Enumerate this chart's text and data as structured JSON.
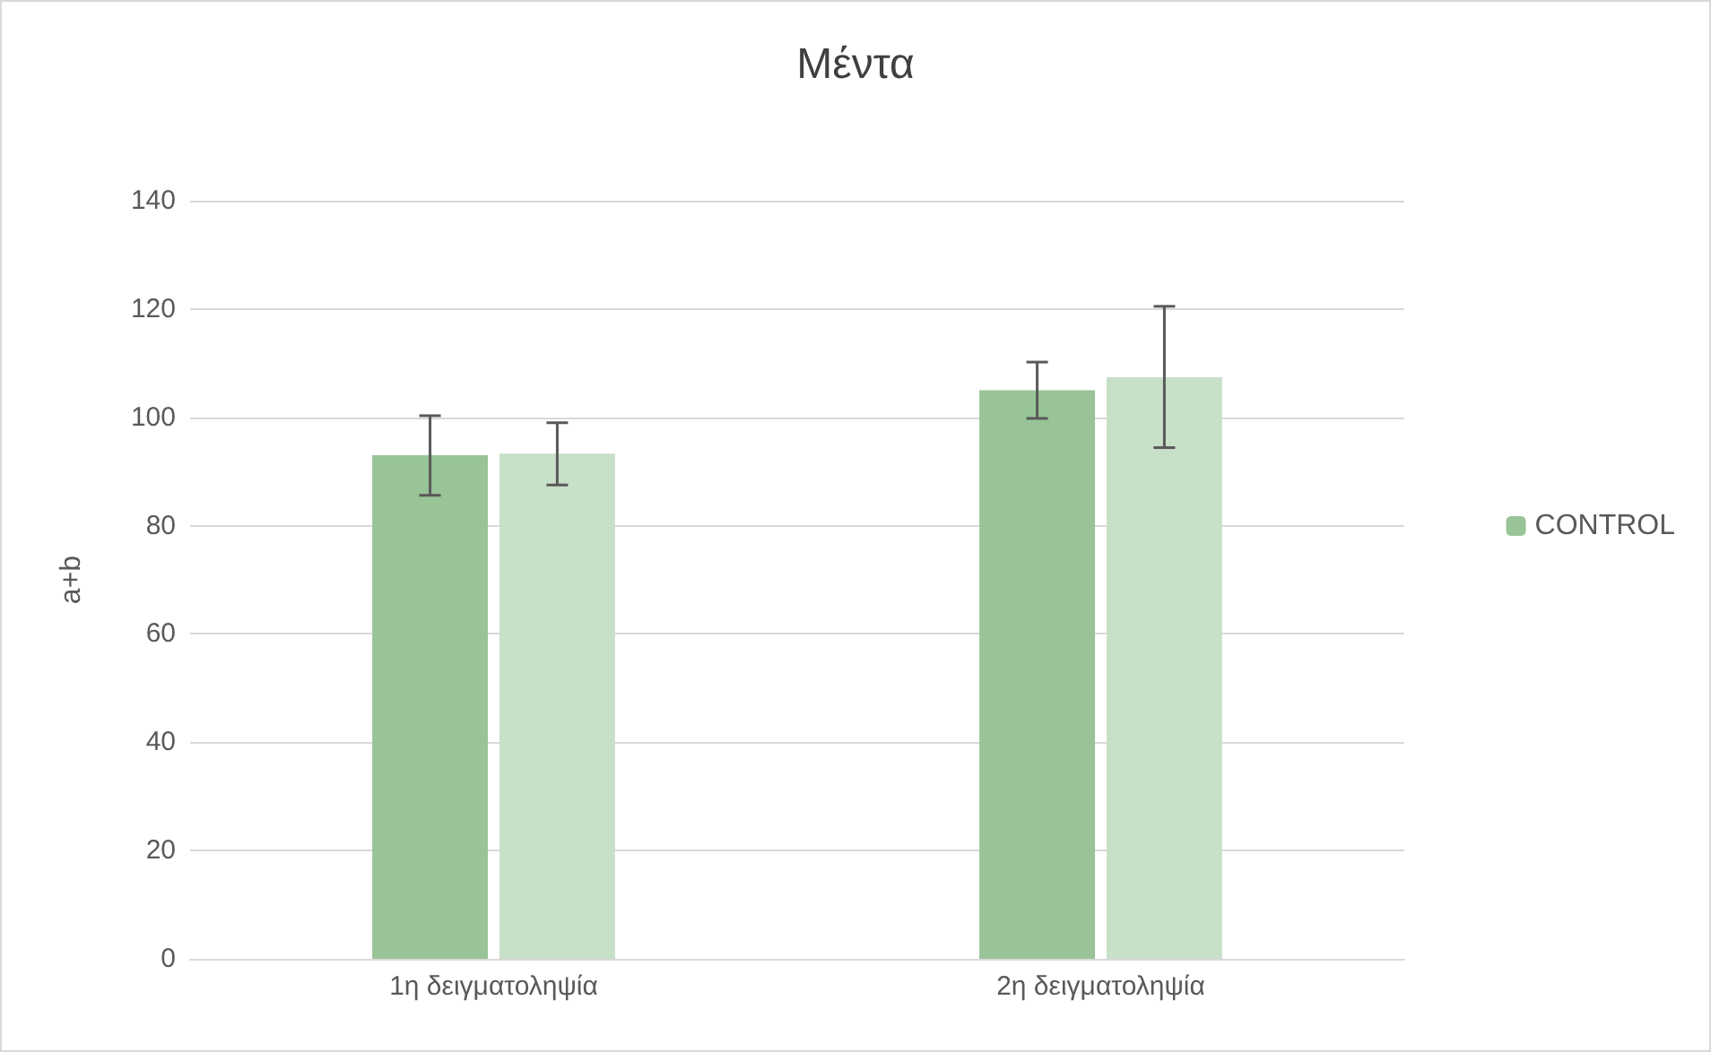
{
  "chart_data": {
    "type": "bar",
    "title": "Μέντα",
    "ylabel": "a+b",
    "categories": [
      "1η δειγματοληψία",
      "2η δειγματοληψία"
    ],
    "series": [
      {
        "name": "CONTROL",
        "color": "#98c498",
        "values": [
          93,
          105
        ],
        "errors": [
          [
            85.6,
            100.3
          ],
          [
            99.8,
            110.2
          ]
        ]
      },
      {
        "color": "#c8dfc8",
        "values": [
          93.3,
          107.4
        ],
        "errors": [
          [
            87.5,
            99
          ],
          [
            94.4,
            120.5
          ]
        ]
      }
    ],
    "ylim": [
      0,
      140
    ],
    "yticks": [
      0,
      20,
      40,
      60,
      80,
      100,
      120,
      140
    ],
    "grid": "y",
    "legend": "right"
  }
}
